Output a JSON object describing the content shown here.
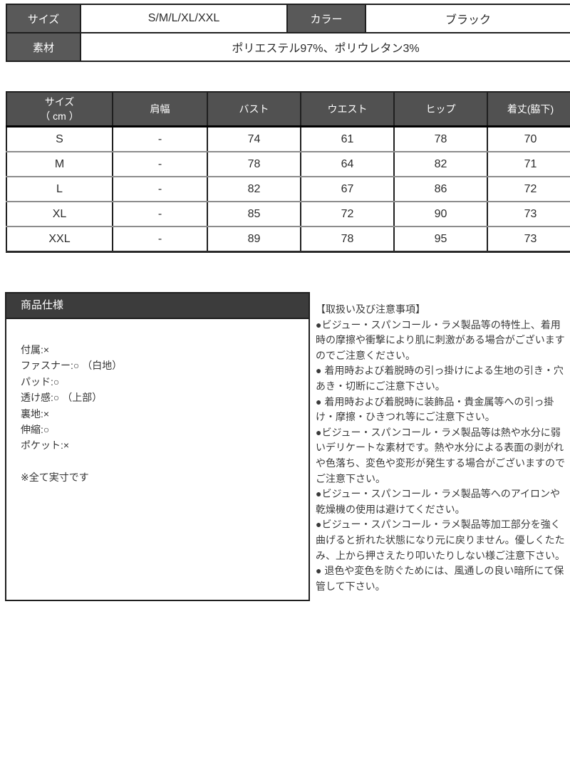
{
  "top_table": {
    "size_label": "サイズ",
    "size_value": "S/M/L/XL/XXL",
    "color_label": "カラー",
    "color_value": "ブラック",
    "material_label": "素材",
    "material_value": "ポリエステル97%、ポリウレタン3%"
  },
  "size_table": {
    "header": {
      "size_label": "サイズ",
      "size_unit": "（ cm ）",
      "cols": [
        "肩幅",
        "バスト",
        "ウエスト",
        "ヒップ",
        "着丈(脇下)"
      ]
    },
    "rows": [
      [
        "S",
        "-",
        "74",
        "61",
        "78",
        "70"
      ],
      [
        "M",
        "-",
        "78",
        "64",
        "82",
        "71"
      ],
      [
        "L",
        "-",
        "82",
        "67",
        "86",
        "72"
      ],
      [
        "XL",
        "-",
        "85",
        "72",
        "90",
        "73"
      ],
      [
        "XXL",
        "-",
        "89",
        "78",
        "95",
        "73"
      ]
    ]
  },
  "spec_box": {
    "title": "商品仕様",
    "lines": [
      "付属:×",
      "ファスナー:○ （白地）",
      "パッド:○",
      "透け感:○ （上部）",
      "裏地:×",
      "伸縮:○",
      "ポケット:×"
    ],
    "note": "※全て実寸です"
  },
  "care_notes": {
    "title": "【取扱い及び注意事項】",
    "items": [
      "●ビジュー・スパンコール・ラメ製品等の特性上、着用時の摩擦や衝撃により肌に刺激がある場合がございますのでご注意ください。",
      "● 着用時および着脱時の引っ掛けによる生地の引き・穴あき・切断にご注意下さい。",
      "● 着用時および着脱時に装飾品・貴金属等への引っ掛け・摩擦・ひきつれ等にご注意下さい。",
      "●ビジュー・スパンコール・ラメ製品等は熱や水分に弱いデリケートな素材です。熱や水分による表面の剥がれや色落ち、変色や変形が発生する場合がございますのでご注意下さい。",
      "●ビジュー・スパンコール・ラメ製品等へのアイロンや乾燥機の使用は避けてください。",
      "●ビジュー・スパンコール・ラメ製品等加工部分を強く曲げると折れた状態になり元に戻りません。優しくたたみ、上から押さえたり叩いたりしない様ご注意下さい。",
      "● 退色や変色を防ぐためには、風通しの良い暗所にて保管して下さい。"
    ]
  }
}
